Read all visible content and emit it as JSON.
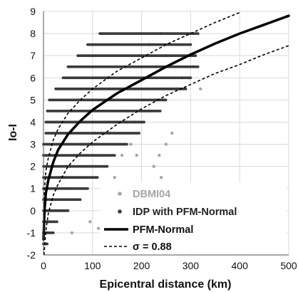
{
  "chart_data": {
    "type": "scatter",
    "xlabel": "Epicentral distance (km)",
    "ylabel": "Io-I",
    "xlim": [
      0,
      500
    ],
    "ylim": [
      -2,
      9
    ],
    "xticks": [
      "0",
      "100",
      "200",
      "300",
      "400",
      "500"
    ],
    "yticks": [
      "-2",
      "-1",
      "0",
      "1",
      "2",
      "3",
      "4",
      "5",
      "6",
      "7",
      "8",
      "9"
    ],
    "grid": true,
    "legend_position": "bottom-right",
    "series": [
      {
        "name": "DBMI04",
        "kind": "points",
        "color": "#a6a6a6",
        "points": [
          [
            3,
            -1
          ],
          [
            6,
            -1
          ],
          [
            10,
            -0.5
          ],
          [
            8,
            0
          ],
          [
            14,
            0
          ],
          [
            18,
            0.5
          ],
          [
            22,
            1
          ],
          [
            28,
            1
          ],
          [
            35,
            1.5
          ],
          [
            42,
            1.5
          ],
          [
            48,
            2
          ],
          [
            55,
            2
          ],
          [
            62,
            2.5
          ],
          [
            70,
            2.5
          ],
          [
            80,
            3
          ],
          [
            92,
            3
          ],
          [
            104,
            3.5
          ],
          [
            118,
            3.5
          ],
          [
            135,
            3.5
          ],
          [
            150,
            4
          ],
          [
            168,
            4
          ],
          [
            185,
            4
          ],
          [
            200,
            4.5
          ],
          [
            215,
            4.5
          ],
          [
            230,
            5
          ],
          [
            245,
            5
          ],
          [
            260,
            5.5
          ],
          [
            272,
            5.5
          ],
          [
            282,
            6
          ],
          [
            296,
            6
          ],
          [
            305,
            6.5
          ],
          [
            225,
            2
          ],
          [
            240,
            1.5
          ],
          [
            250,
            3
          ],
          [
            262,
            3.5
          ],
          [
            236,
            2.5
          ],
          [
            160,
            2.5
          ],
          [
            178,
            3
          ],
          [
            190,
            2.5
          ],
          [
            196,
            1
          ],
          [
            112,
            -0.8
          ],
          [
            95,
            -0.5
          ],
          [
            125,
            1
          ],
          [
            145,
            1.5
          ],
          [
            215,
            7.5
          ],
          [
            320,
            5.5
          ],
          [
            230,
            6.5
          ],
          [
            250,
            7
          ],
          [
            240,
            8
          ],
          [
            195,
            7
          ],
          [
            120,
            0.5
          ],
          [
            58,
            -1
          ]
        ]
      },
      {
        "name": "IDP with PFM-Normal",
        "kind": "rows",
        "color": "#3a3a3a",
        "rows": [
          [
            -1.5,
            0,
            8
          ],
          [
            -1,
            0,
            20
          ],
          [
            -0.5,
            0,
            28
          ],
          [
            0,
            0,
            50
          ],
          [
            0.5,
            0,
            75
          ],
          [
            1,
            0,
            90
          ],
          [
            1.5,
            0,
            110
          ],
          [
            2,
            0,
            130
          ],
          [
            2.5,
            0,
            145
          ],
          [
            3,
            0,
            170
          ],
          [
            3.5,
            5,
            195
          ],
          [
            4,
            5,
            205
          ],
          [
            4.5,
            8,
            240
          ],
          [
            5,
            12,
            250
          ],
          [
            5.5,
            25,
            290
          ],
          [
            6,
            40,
            300
          ],
          [
            6.5,
            50,
            315
          ],
          [
            7,
            70,
            310
          ],
          [
            7.5,
            90,
            300
          ],
          [
            8,
            115,
            315
          ]
        ]
      },
      {
        "name": "PFM-Normal",
        "kind": "curve",
        "color": "#000000",
        "points": [
          [
            0,
            -1.3
          ],
          [
            2,
            0
          ],
          [
            5,
            0.8
          ],
          [
            10,
            1.4
          ],
          [
            20,
            2.2
          ],
          [
            30,
            2.75
          ],
          [
            50,
            3.45
          ],
          [
            75,
            4.05
          ],
          [
            100,
            4.55
          ],
          [
            150,
            5.3
          ],
          [
            200,
            5.9
          ],
          [
            250,
            6.5
          ],
          [
            300,
            7.05
          ],
          [
            350,
            7.55
          ],
          [
            400,
            8.0
          ],
          [
            450,
            8.4
          ],
          [
            500,
            8.8
          ]
        ]
      },
      {
        "name": "σ = 0.88",
        "kind": "dashed",
        "color": "#000000",
        "curves": [
          [
            [
              0,
              -0.2
            ],
            [
              2,
              1.0
            ],
            [
              5,
              1.8
            ],
            [
              10,
              2.4
            ],
            [
              20,
              3.2
            ],
            [
              30,
              3.7
            ],
            [
              50,
              4.4
            ],
            [
              75,
              5.0
            ],
            [
              100,
              5.5
            ],
            [
              150,
              6.3
            ],
            [
              200,
              6.9
            ],
            [
              250,
              7.5
            ],
            [
              300,
              8.0
            ],
            [
              350,
              8.5
            ],
            [
              400,
              8.95
            ]
          ],
          [
            [
              1,
              -2
            ],
            [
              5,
              -0.9
            ],
            [
              10,
              -0.1
            ],
            [
              20,
              0.7
            ],
            [
              30,
              1.2
            ],
            [
              50,
              2.0
            ],
            [
              75,
              2.6
            ],
            [
              100,
              3.1
            ],
            [
              150,
              3.9
            ],
            [
              200,
              4.6
            ],
            [
              250,
              5.2
            ],
            [
              300,
              5.7
            ],
            [
              350,
              6.2
            ],
            [
              400,
              6.6
            ],
            [
              450,
              7.05
            ],
            [
              500,
              7.45
            ]
          ]
        ]
      }
    ]
  }
}
